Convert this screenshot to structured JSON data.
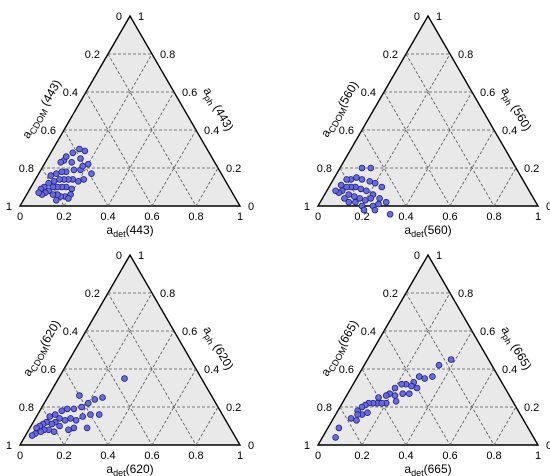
{
  "chart_data": [
    {
      "type": "ternary-scatter",
      "axes": {
        "left": {
          "label": "a",
          "sub": "CDOM",
          "suffix": " (443)"
        },
        "right": {
          "label": "a",
          "sub": "ph",
          "suffix": " (443)"
        },
        "bottom": {
          "label": "a",
          "sub": "det",
          "suffix": "(443)"
        }
      },
      "ticks": [
        "0",
        "0.2",
        "0.4",
        "0.6",
        "0.8",
        "1"
      ],
      "grid": true,
      "points_cdom_det": [
        [
          0.58,
          0.12
        ],
        [
          0.6,
          0.15
        ],
        [
          0.62,
          0.1
        ],
        [
          0.63,
          0.18
        ],
        [
          0.65,
          0.12
        ],
        [
          0.66,
          0.15
        ],
        [
          0.67,
          0.2
        ],
        [
          0.68,
          0.08
        ],
        [
          0.69,
          0.17
        ],
        [
          0.7,
          0.12
        ],
        [
          0.71,
          0.15
        ],
        [
          0.72,
          0.1
        ],
        [
          0.72,
          0.19
        ],
        [
          0.73,
          0.13
        ],
        [
          0.74,
          0.16
        ],
        [
          0.75,
          0.08
        ],
        [
          0.75,
          0.11
        ],
        [
          0.76,
          0.14
        ],
        [
          0.77,
          0.18
        ],
        [
          0.78,
          0.06
        ],
        [
          0.78,
          0.09
        ],
        [
          0.78,
          0.12
        ],
        [
          0.79,
          0.16
        ],
        [
          0.8,
          0.1
        ],
        [
          0.8,
          0.14
        ],
        [
          0.81,
          0.07
        ],
        [
          0.82,
          0.12
        ],
        [
          0.83,
          0.09
        ],
        [
          0.84,
          0.06
        ],
        [
          0.85,
          0.08
        ],
        [
          0.86,
          0.05
        ],
        [
          0.87,
          0.07
        ],
        [
          0.88,
          0.05
        ],
        [
          0.74,
          0.2
        ],
        [
          0.64,
          0.22
        ],
        [
          0.61,
          0.18
        ],
        [
          0.66,
          0.08
        ],
        [
          0.7,
          0.07
        ],
        [
          0.76,
          0.2
        ],
        [
          0.82,
          0.15
        ],
        [
          0.58,
          0.2
        ],
        [
          0.56,
          0.15
        ],
        [
          0.59,
          0.24
        ]
      ]
    },
    {
      "type": "ternary-scatter",
      "axes": {
        "left": {
          "label": "a",
          "sub": "CDOM",
          "suffix": "(560)"
        },
        "right": {
          "label": "a",
          "sub": "ph",
          "suffix": " (560)"
        },
        "bottom": {
          "label": "a",
          "sub": "det",
          "suffix": "(560)"
        }
      },
      "ticks": [
        "0",
        "0.2",
        "0.4",
        "0.6",
        "0.8",
        "1"
      ],
      "grid": true,
      "points_cdom_det": [
        [
          0.66,
          0.14
        ],
        [
          0.68,
          0.2
        ],
        [
          0.7,
          0.1
        ],
        [
          0.7,
          0.17
        ],
        [
          0.72,
          0.22
        ],
        [
          0.73,
          0.13
        ],
        [
          0.74,
          0.18
        ],
        [
          0.75,
          0.1
        ],
        [
          0.76,
          0.15
        ],
        [
          0.77,
          0.2
        ],
        [
          0.78,
          0.08
        ],
        [
          0.78,
          0.12
        ],
        [
          0.79,
          0.17
        ],
        [
          0.8,
          0.06
        ],
        [
          0.8,
          0.1
        ],
        [
          0.81,
          0.14
        ],
        [
          0.82,
          0.08
        ],
        [
          0.83,
          0.11
        ],
        [
          0.84,
          0.05
        ],
        [
          0.85,
          0.07
        ],
        [
          0.86,
          0.1
        ],
        [
          0.87,
          0.06
        ],
        [
          0.88,
          0.04
        ],
        [
          0.75,
          0.25
        ],
        [
          0.72,
          0.27
        ],
        [
          0.68,
          0.3
        ],
        [
          0.66,
          0.24
        ],
        [
          0.74,
          0.22
        ],
        [
          0.8,
          0.2
        ],
        [
          0.82,
          0.16
        ],
        [
          0.77,
          0.27
        ],
        [
          0.79,
          0.23
        ],
        [
          0.85,
          0.13
        ],
        [
          0.84,
          0.18
        ],
        [
          0.7,
          0.26
        ]
      ]
    },
    {
      "type": "ternary-scatter",
      "axes": {
        "left": {
          "label": "a",
          "sub": "CDOM",
          "suffix": "(620)"
        },
        "right": {
          "label": "a",
          "sub": "ph",
          "suffix": " (620)"
        },
        "bottom": {
          "label": "a",
          "sub": "det",
          "suffix": "(620)"
        }
      },
      "ticks": [
        "0",
        "0.2",
        "0.4",
        "0.6",
        "0.8",
        "1"
      ],
      "grid": true,
      "points_cdom_det": [
        [
          0.5,
          0.25
        ],
        [
          0.54,
          0.22
        ],
        [
          0.58,
          0.2
        ],
        [
          0.6,
          0.24
        ],
        [
          0.62,
          0.18
        ],
        [
          0.64,
          0.21
        ],
        [
          0.66,
          0.15
        ],
        [
          0.68,
          0.19
        ],
        [
          0.69,
          0.12
        ],
        [
          0.7,
          0.16
        ],
        [
          0.72,
          0.1
        ],
        [
          0.73,
          0.14
        ],
        [
          0.74,
          0.18
        ],
        [
          0.75,
          0.11
        ],
        [
          0.76,
          0.08
        ],
        [
          0.77,
          0.13
        ],
        [
          0.78,
          0.1
        ],
        [
          0.79,
          0.06
        ],
        [
          0.8,
          0.09
        ],
        [
          0.81,
          0.12
        ],
        [
          0.82,
          0.06
        ],
        [
          0.83,
          0.09
        ],
        [
          0.84,
          0.05
        ],
        [
          0.85,
          0.07
        ],
        [
          0.86,
          0.04
        ],
        [
          0.87,
          0.06
        ],
        [
          0.88,
          0.03
        ],
        [
          0.9,
          0.04
        ],
        [
          0.92,
          0.03
        ],
        [
          0.35,
          0.3
        ],
        [
          0.56,
          0.28
        ],
        [
          0.6,
          0.14
        ],
        [
          0.71,
          0.2
        ],
        [
          0.65,
          0.26
        ]
      ]
    },
    {
      "type": "ternary-scatter",
      "axes": {
        "left": {
          "label": "a",
          "sub": "CDOM",
          "suffix": "(665)"
        },
        "right": {
          "label": "a",
          "sub": "ph",
          "suffix": " (665)"
        },
        "bottom": {
          "label": "a",
          "sub": "det",
          "suffix": "(665)"
        }
      },
      "ticks": [
        "0",
        "0.2",
        "0.4",
        "0.6",
        "0.8",
        "1"
      ],
      "grid": true,
      "points_cdom_det": [
        [
          0.17,
          0.38
        ],
        [
          0.24,
          0.34
        ],
        [
          0.3,
          0.34
        ],
        [
          0.34,
          0.31
        ],
        [
          0.36,
          0.28
        ],
        [
          0.4,
          0.27
        ],
        [
          0.42,
          0.27
        ],
        [
          0.44,
          0.24
        ],
        [
          0.46,
          0.22
        ],
        [
          0.48,
          0.25
        ],
        [
          0.5,
          0.2
        ],
        [
          0.52,
          0.22
        ],
        [
          0.54,
          0.19
        ],
        [
          0.56,
          0.18
        ],
        [
          0.58,
          0.2
        ],
        [
          0.6,
          0.15
        ],
        [
          0.62,
          0.16
        ],
        [
          0.64,
          0.14
        ],
        [
          0.66,
          0.12
        ],
        [
          0.68,
          0.11
        ],
        [
          0.69,
          0.14
        ],
        [
          0.7,
          0.1
        ],
        [
          0.72,
          0.12
        ],
        [
          0.73,
          0.09
        ],
        [
          0.74,
          0.1
        ],
        [
          0.76,
          0.11
        ],
        [
          0.78,
          0.08
        ],
        [
          0.86,
          0.05
        ],
        [
          0.9,
          0.06
        ],
        [
          0.6,
          0.18
        ],
        [
          0.53,
          0.24
        ],
        [
          0.45,
          0.28
        ],
        [
          0.4,
          0.3
        ]
      ]
    }
  ],
  "theme": {
    "fill": "#e9e9e9",
    "edge": "#000000",
    "grid": "#555555",
    "point_fill": "#6b6bd6",
    "point_stroke": "#1f1f8a"
  }
}
